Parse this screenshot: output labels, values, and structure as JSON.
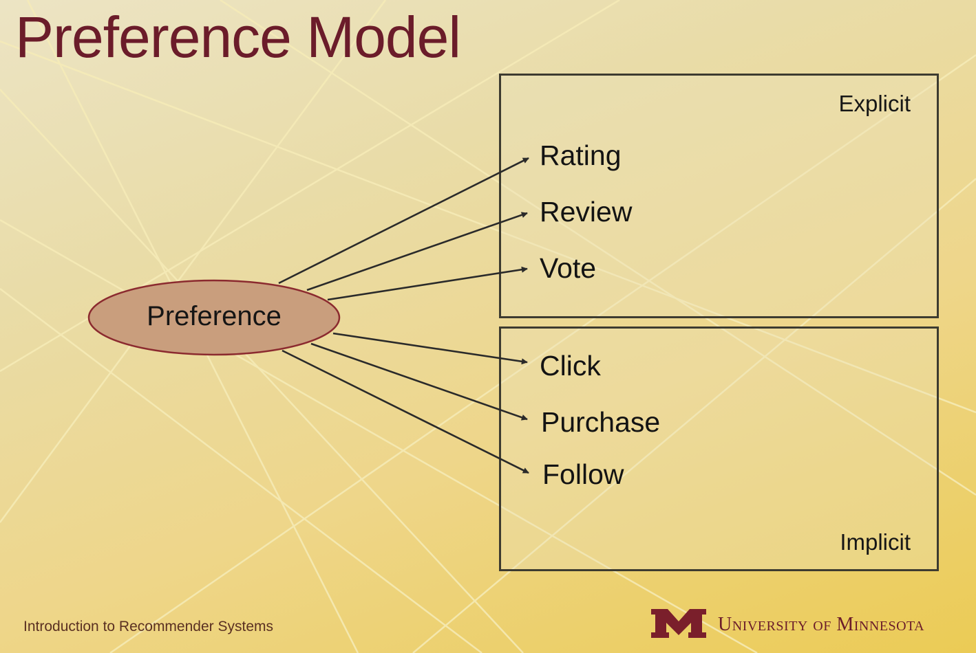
{
  "slide": {
    "title": "Preference Model",
    "footer": "Introduction to Recommender Systems",
    "university": "University of Minnesota"
  },
  "diagram": {
    "center_node": "Preference",
    "groups": [
      {
        "label": "Explicit",
        "items": [
          "Rating",
          "Review",
          "Vote"
        ]
      },
      {
        "label": "Implicit",
        "items": [
          "Click",
          "Purchase",
          "Follow"
        ]
      }
    ]
  },
  "colors": {
    "title": "#6b1c2a",
    "node_fill": "#c99e7d",
    "node_stroke": "#8b2a2f",
    "logo": "#7a1f2b",
    "arrow": "#2a2a2a"
  }
}
